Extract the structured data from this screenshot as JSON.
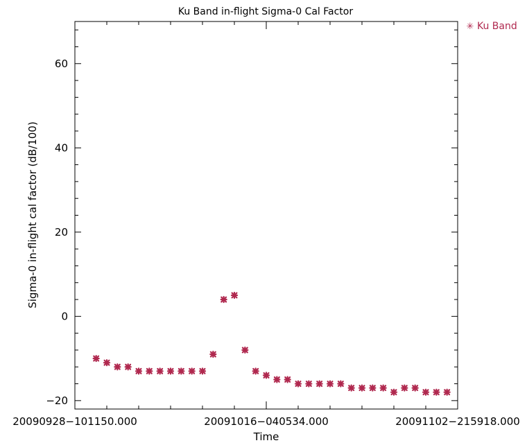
{
  "chart_data": {
    "type": "scatter",
    "title": "Ku Band in-flight Sigma-0 Cal Factor",
    "xlabel": "Time",
    "ylabel": "Sigma-0 in-flight cal factor (dB/100)",
    "x_ticks": [
      "20090928-101150.000",
      "20091016-040534.000",
      "20091102-215918.000"
    ],
    "y_ticks": [
      -20,
      0,
      20,
      40,
      60
    ],
    "ylim": [
      -22,
      70
    ],
    "x_index_range": [
      0,
      36
    ],
    "legend": {
      "label": "Ku Band",
      "symbol": "✳",
      "placement": "top-right, outside plot"
    },
    "series": [
      {
        "name": "Ku Band",
        "color": "#b0294f",
        "x": [
          2,
          3,
          4,
          5,
          6,
          7,
          8,
          9,
          10,
          11,
          12,
          13,
          14,
          15,
          16,
          17,
          18,
          19,
          20,
          21,
          22,
          23,
          24,
          25,
          26,
          27,
          28,
          29,
          30,
          31,
          32,
          33,
          34,
          35
        ],
        "y": [
          -10,
          -11,
          -12,
          -12,
          -13,
          -13,
          -13,
          -13,
          -13,
          -13,
          -13,
          -9,
          4,
          5,
          -8,
          -13,
          -14,
          -15,
          -15,
          -16,
          -16,
          -16,
          -16,
          -16,
          -17,
          -17,
          -17,
          -17,
          -18,
          -17,
          -17,
          -18,
          -18,
          -18
        ]
      }
    ],
    "grid": false,
    "axis_color": "#000000"
  }
}
